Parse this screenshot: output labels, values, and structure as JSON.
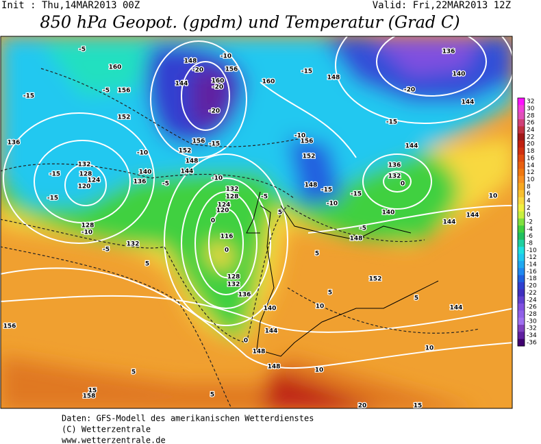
{
  "header": {
    "init": "Init : Thu,14MAR2013 00Z",
    "valid": "Valid: Fri,22MAR2013 12Z",
    "title": "850 hPa Geopot. (gpdm) und Temperatur (Grad C)"
  },
  "colorbar": {
    "labels": [
      "32",
      "30",
      "28",
      "26",
      "24",
      "22",
      "20",
      "18",
      "16",
      "14",
      "12",
      "10",
      "8",
      "6",
      "4",
      "2",
      "0",
      "-2",
      "-4",
      "-6",
      "-8",
      "-10",
      "-12",
      "-14",
      "-16",
      "-18",
      "-20",
      "-22",
      "-24",
      "-26",
      "-28",
      "-30",
      "-32",
      "-34",
      "-36"
    ],
    "colors": [
      "#ff10ff",
      "#f040d8",
      "#e050b8",
      "#d04078",
      "#c03040",
      "#a01818",
      "#c02010",
      "#d03010",
      "#e04a10",
      "#e86010",
      "#f07810",
      "#f89020",
      "#f8a820",
      "#f8c030",
      "#f8d840",
      "#f0f040",
      "#c8f040",
      "#80e040",
      "#40d040",
      "#20c060",
      "#20d0a0",
      "#20e0e0",
      "#20c8f0",
      "#20a8f0",
      "#2088f0",
      "#2060e0",
      "#3040d0",
      "#4030c0",
      "#6040d0",
      "#8050e0",
      "#9060e8",
      "#a070f0",
      "#8040c0",
      "#6020a0",
      "#400070"
    ]
  },
  "map": {
    "labels": [
      "136",
      "140",
      "144",
      "148",
      "-15",
      "-20",
      "-15",
      "160",
      "156",
      "160",
      "-20",
      "-20",
      "148",
      "-20",
      "144",
      "-10",
      "-15",
      "-5",
      "-5",
      "160",
      "156",
      "152",
      "136",
      "132",
      "128",
      "124",
      "120",
      "-15",
      "-15",
      "-10",
      "128",
      "132",
      "-5",
      "5",
      "140",
      "136",
      "-10",
      "-5",
      "152",
      "148",
      "144",
      "-10",
      "156",
      "-15",
      "132",
      "128",
      "124",
      "120",
      "0",
      "116",
      "0",
      "128",
      "132",
      "136",
      "140",
      "144",
      "148",
      "148",
      "0",
      "5",
      "-5",
      "156",
      "-10",
      "152",
      "148",
      "-15",
      "-10",
      "-15",
      "136",
      "132",
      "0",
      "144",
      "140",
      "-5",
      "148",
      "152",
      "144",
      "144",
      "10",
      "5",
      "5",
      "10",
      "5",
      "144",
      "10",
      "10",
      "20",
      "15",
      "156",
      "5",
      "15",
      "158",
      "5"
    ]
  },
  "footer": {
    "lines": [
      "Daten: GFS-Modell des amerikanischen Wetterdienstes",
      "(C) Wetterzentrale",
      "www.wetterzentrale.de"
    ]
  }
}
